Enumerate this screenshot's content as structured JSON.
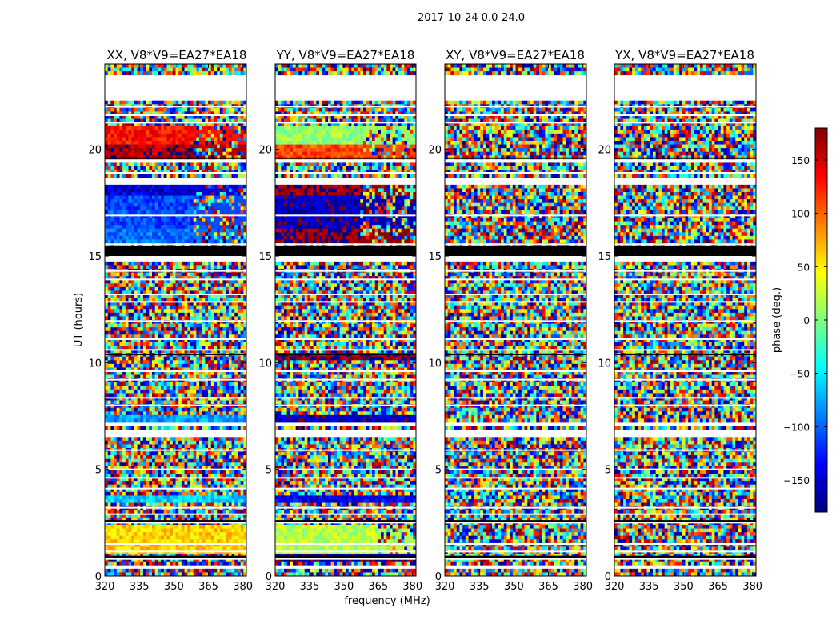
{
  "figure": {
    "suptitle": "2017-10-24 0.0-24.0",
    "xlabel": "frequency (MHz)",
    "ylabel": "UT (hours)"
  },
  "colorbar": {
    "label": "phase (deg.)",
    "range": [
      -180,
      180
    ],
    "ticks": [
      150,
      100,
      50,
      0,
      -50,
      -100,
      -150
    ],
    "tick_labels": [
      "150",
      "100",
      "50",
      "0",
      "−50",
      "−100",
      "−150"
    ],
    "colormap": [
      "#00007f",
      "#0000ff",
      "#007fff",
      "#00ffff",
      "#7fff7f",
      "#ffff00",
      "#ff7f00",
      "#ff0000",
      "#7f0000"
    ]
  },
  "chart_data": [
    {
      "type": "heatmap",
      "title": "XX, V8*V9=EA27*EA18",
      "xlabel": "frequency (MHz)",
      "ylabel": "UT (hours)",
      "xlim": [
        320,
        381.5
      ],
      "ylim": [
        0,
        24
      ],
      "xticks": [
        320,
        335,
        350,
        365,
        380
      ],
      "yticks": [
        0,
        5,
        10,
        15,
        20
      ],
      "value": "phase (deg.)",
      "bands": [
        {
          "t0": 20.2,
          "t1": 21.1,
          "phase": 130,
          "ch_end": 0.62
        },
        {
          "t0": 19.6,
          "t1": 20.2,
          "phase": 165,
          "ch_end": 0.62
        },
        {
          "t0": 17.8,
          "t1": 18.4,
          "phase": -150,
          "ch_end": 0.62
        },
        {
          "t0": 16.3,
          "t1": 17.8,
          "phase": -110,
          "ch_end": 0.62
        },
        {
          "t0": 15.6,
          "t1": 16.3,
          "phase": -95,
          "ch_end": 0.62
        },
        {
          "t0": 7.2,
          "t1": 7.6,
          "phase": -80,
          "ch_end": 1.0
        },
        {
          "t0": 3.4,
          "t1": 3.7,
          "phase": -60,
          "ch_end": 1.0
        },
        {
          "t0": 1.0,
          "t1": 2.4,
          "phase": 60,
          "ch_end": 1.0
        }
      ]
    },
    {
      "type": "heatmap",
      "title": "YY, V8*V9=EA27*EA18",
      "xlabel": "frequency (MHz)",
      "ylabel": "UT (hours)",
      "xlim": [
        320,
        381.5
      ],
      "ylim": [
        0,
        24
      ],
      "xticks": [
        320,
        335,
        350,
        365,
        380
      ],
      "yticks": [
        0,
        5,
        10,
        15,
        20
      ],
      "value": "phase (deg.)",
      "bands": [
        {
          "t0": 20.2,
          "t1": 21.1,
          "phase": 10,
          "ch_end": 0.63
        },
        {
          "t0": 19.6,
          "t1": 20.2,
          "phase": 110,
          "ch_end": 0.63
        },
        {
          "t0": 17.8,
          "t1": 18.4,
          "phase": 170,
          "ch_end": 0.63
        },
        {
          "t0": 16.3,
          "t1": 17.8,
          "phase": -160,
          "ch_end": 0.6
        },
        {
          "t0": 15.6,
          "t1": 16.3,
          "phase": 175,
          "ch_end": 0.6
        },
        {
          "t0": 10.1,
          "t1": 10.4,
          "phase": 175,
          "ch_end": 1.0
        },
        {
          "t0": 7.2,
          "t1": 7.6,
          "phase": -160,
          "ch_end": 1.0
        },
        {
          "t0": 3.4,
          "t1": 3.7,
          "phase": -140,
          "ch_end": 1.0
        },
        {
          "t0": 1.0,
          "t1": 2.4,
          "phase": 20,
          "ch_end": 0.7
        },
        {
          "t0": 0.7,
          "t1": 1.0,
          "phase": -170,
          "ch_end": 1.0
        }
      ]
    },
    {
      "type": "heatmap",
      "title": "XY, V8*V9=EA27*EA18",
      "xlabel": "frequency (MHz)",
      "ylabel": "UT (hours)",
      "xlim": [
        320,
        381.5
      ],
      "ylim": [
        0,
        24
      ],
      "xticks": [
        320,
        335,
        350,
        365,
        380
      ],
      "yticks": [
        0,
        5,
        10,
        15,
        20
      ],
      "value": "phase (deg.)",
      "bands": []
    },
    {
      "type": "heatmap",
      "title": "YX, V8*V9=EA27*EA18",
      "xlabel": "frequency (MHz)",
      "ylabel": "UT (hours)",
      "xlim": [
        320,
        381.5
      ],
      "ylim": [
        0,
        24
      ],
      "xticks": [
        320,
        335,
        350,
        365,
        380
      ],
      "yticks": [
        0,
        5,
        10,
        15,
        20
      ],
      "value": "phase (deg.)",
      "bands": []
    }
  ],
  "gaps_hours": [
    [
      22.3,
      23.4
    ],
    [
      19.3,
      19.55
    ],
    [
      18.4,
      18.6
    ],
    [
      15.3,
      15.5
    ],
    [
      14.7,
      15.3
    ],
    [
      7.0,
      7.15
    ],
    [
      6.6,
      6.9
    ],
    [
      0.35,
      0.6
    ]
  ],
  "blank_lines_hours": [
    22.0,
    21.6,
    21.25,
    18.9,
    16.9,
    15.55,
    14.3,
    13.9,
    13.2,
    12.85,
    11.95,
    11.1,
    10.6,
    9.6,
    9.2,
    8.35,
    8.0,
    5.9,
    5.0,
    4.6,
    4.1,
    3.2,
    2.9,
    2.5,
    1.5,
    1.15,
    0.8
  ]
}
